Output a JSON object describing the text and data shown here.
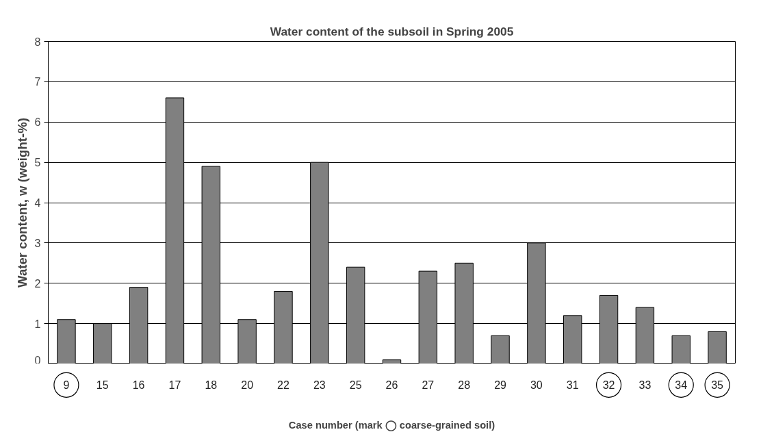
{
  "chart_data": {
    "type": "bar",
    "title": "Water content of the subsoil in Spring 2005",
    "xlabel": "Case number (mark ◯ coarse-grained soil)",
    "ylabel": "Water content, w (weight-%)",
    "categories": [
      "9",
      "15",
      "16",
      "17",
      "18",
      "20",
      "22",
      "23",
      "25",
      "26",
      "27",
      "28",
      "29",
      "30",
      "31",
      "32",
      "33",
      "34",
      "35"
    ],
    "values": [
      1.1,
      1.0,
      1.9,
      6.6,
      4.9,
      1.1,
      1.8,
      5.0,
      2.4,
      0.1,
      2.3,
      2.5,
      0.7,
      3.0,
      1.2,
      1.7,
      1.4,
      0.7,
      0.8
    ],
    "color": "#808080",
    "ylim": [
      0,
      8
    ],
    "yticks": [
      0,
      1,
      2,
      3,
      4,
      5,
      6,
      7,
      8
    ],
    "grid": "y"
  }
}
